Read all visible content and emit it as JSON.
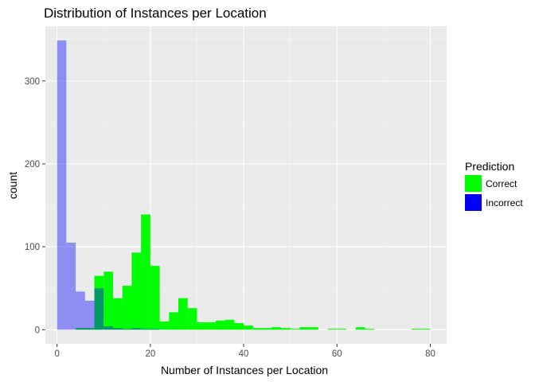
{
  "chart_data": {
    "type": "bar",
    "subtype": "overlapping-histogram",
    "title": "Distribution of Instances per Location",
    "xlabel": "Number of Instances per Location",
    "ylabel": "count",
    "xlim": [
      -2.5,
      83.5
    ],
    "ylim": [
      -17,
      366
    ],
    "x_ticks": [
      0,
      20,
      40,
      60,
      80
    ],
    "y_ticks": [
      0,
      100,
      200,
      300
    ],
    "bin_width": 2,
    "grid": true,
    "legend_title": "Prediction",
    "legend_position": "right",
    "series": [
      {
        "name": "Correct",
        "color": "#00ff00",
        "opacity": 1,
        "bins": [
          {
            "x0": 0,
            "x1": 2,
            "count": 0
          },
          {
            "x0": 2,
            "x1": 4,
            "count": 0
          },
          {
            "x0": 4,
            "x1": 6,
            "count": 2
          },
          {
            "x0": 6,
            "x1": 8,
            "count": 2
          },
          {
            "x0": 8,
            "x1": 10,
            "count": 65
          },
          {
            "x0": 10,
            "x1": 12,
            "count": 70
          },
          {
            "x0": 12,
            "x1": 14,
            "count": 38
          },
          {
            "x0": 14,
            "x1": 16,
            "count": 53
          },
          {
            "x0": 16,
            "x1": 18,
            "count": 93
          },
          {
            "x0": 18,
            "x1": 20,
            "count": 139
          },
          {
            "x0": 20,
            "x1": 22,
            "count": 77
          },
          {
            "x0": 22,
            "x1": 24,
            "count": 10
          },
          {
            "x0": 24,
            "x1": 26,
            "count": 21
          },
          {
            "x0": 26,
            "x1": 28,
            "count": 38
          },
          {
            "x0": 28,
            "x1": 30,
            "count": 26
          },
          {
            "x0": 30,
            "x1": 32,
            "count": 9
          },
          {
            "x0": 32,
            "x1": 34,
            "count": 9
          },
          {
            "x0": 34,
            "x1": 36,
            "count": 11
          },
          {
            "x0": 36,
            "x1": 38,
            "count": 12
          },
          {
            "x0": 38,
            "x1": 40,
            "count": 8
          },
          {
            "x0": 40,
            "x1": 42,
            "count": 5
          },
          {
            "x0": 42,
            "x1": 44,
            "count": 2
          },
          {
            "x0": 44,
            "x1": 46,
            "count": 2
          },
          {
            "x0": 46,
            "x1": 48,
            "count": 3
          },
          {
            "x0": 48,
            "x1": 50,
            "count": 2
          },
          {
            "x0": 50,
            "x1": 52,
            "count": 1
          },
          {
            "x0": 52,
            "x1": 54,
            "count": 3
          },
          {
            "x0": 54,
            "x1": 56,
            "count": 3
          },
          {
            "x0": 56,
            "x1": 58,
            "count": 0
          },
          {
            "x0": 58,
            "x1": 60,
            "count": 1
          },
          {
            "x0": 60,
            "x1": 62,
            "count": 1
          },
          {
            "x0": 62,
            "x1": 64,
            "count": 0
          },
          {
            "x0": 64,
            "x1": 66,
            "count": 3
          },
          {
            "x0": 66,
            "x1": 68,
            "count": 1
          },
          {
            "x0": 76,
            "x1": 78,
            "count": 1
          },
          {
            "x0": 78,
            "x1": 80,
            "count": 1
          }
        ]
      },
      {
        "name": "Incorrect",
        "color": "#0000ff",
        "opacity": 0.4,
        "bins": [
          {
            "x0": 0,
            "x1": 2,
            "count": 349
          },
          {
            "x0": 2,
            "x1": 4,
            "count": 105
          },
          {
            "x0": 4,
            "x1": 6,
            "count": 46
          },
          {
            "x0": 6,
            "x1": 8,
            "count": 35
          },
          {
            "x0": 8,
            "x1": 10,
            "count": 50
          },
          {
            "x0": 10,
            "x1": 12,
            "count": 4
          },
          {
            "x0": 12,
            "x1": 14,
            "count": 2
          },
          {
            "x0": 14,
            "x1": 16,
            "count": 1
          },
          {
            "x0": 16,
            "x1": 18,
            "count": 2
          },
          {
            "x0": 18,
            "x1": 20,
            "count": 1
          },
          {
            "x0": 20,
            "x1": 22,
            "count": 1
          }
        ]
      }
    ]
  }
}
